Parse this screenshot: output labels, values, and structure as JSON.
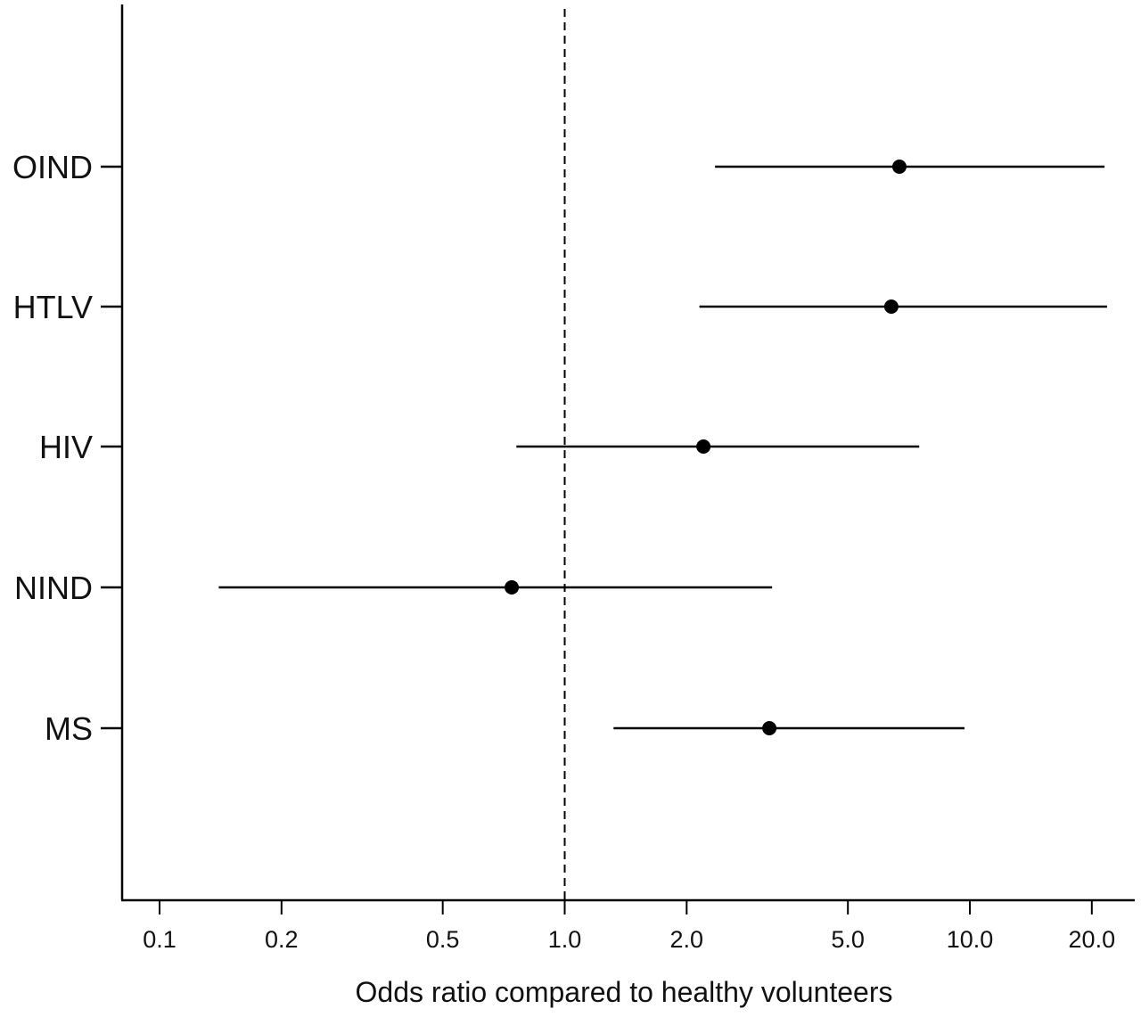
{
  "chart_data": {
    "type": "forest",
    "xlabel": "Odds ratio compared to healthy volunteers",
    "x_scale": "log",
    "xlim": [
      0.09,
      25
    ],
    "x_ticks": [
      0.1,
      0.2,
      0.5,
      1.0,
      2.0,
      5.0,
      10.0,
      20.0
    ],
    "x_tick_labels": [
      "0.1",
      "0.2",
      "0.5",
      "1.0",
      "2.0",
      "5.0",
      "10.0",
      "20.0"
    ],
    "reference_line": 1.0,
    "categories": [
      "OIND",
      "HTLV",
      "HIV",
      "NIND",
      "MS"
    ],
    "estimates": [
      6.7,
      6.4,
      2.2,
      0.74,
      3.2
    ],
    "ci_lower": [
      2.35,
      2.15,
      0.76,
      0.14,
      1.32
    ],
    "ci_upper": [
      21.5,
      21.8,
      7.5,
      3.25,
      9.7
    ],
    "colors": {
      "marks": "#000000",
      "reference": "#000000"
    }
  }
}
